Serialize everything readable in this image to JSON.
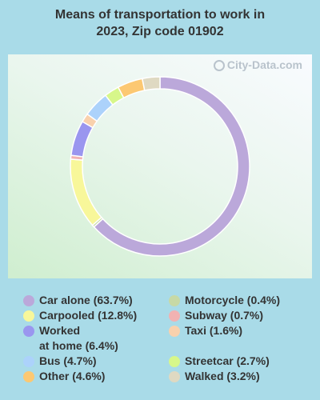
{
  "title_line1": "Means of transportation to work in",
  "title_line2": "2023, Zip code 01902",
  "watermark": "City-Data.com",
  "chart_data": {
    "type": "pie",
    "style": "donut",
    "slices": [
      {
        "label": "Car alone (63.7%)",
        "value": 63.7,
        "color": "#bba8da"
      },
      {
        "label": "Motorcycle (0.4%)",
        "value": 0.4,
        "color": "#c7d9a6"
      },
      {
        "label": "Carpooled (12.8%)",
        "value": 12.8,
        "color": "#f8f79a"
      },
      {
        "label": "Subway (0.7%)",
        "value": 0.7,
        "color": "#f1b2b2"
      },
      {
        "label": "Worked\nat home (6.4%)",
        "value": 6.4,
        "color": "#9a96ef"
      },
      {
        "label": "Taxi (1.6%)",
        "value": 1.6,
        "color": "#f9d1ad"
      },
      {
        "label": "Bus (4.7%)",
        "value": 4.7,
        "color": "#acd2fb"
      },
      {
        "label": "Streetcar (2.7%)",
        "value": 2.7,
        "color": "#d7f78a"
      },
      {
        "label": "Other (4.6%)",
        "value": 4.6,
        "color": "#fcc872"
      },
      {
        "label": "Walked (3.2%)",
        "value": 3.2,
        "color": "#dfd9c2"
      }
    ],
    "legend_order": [
      0,
      2,
      4,
      6,
      8,
      1,
      3,
      5,
      7,
      9
    ]
  }
}
